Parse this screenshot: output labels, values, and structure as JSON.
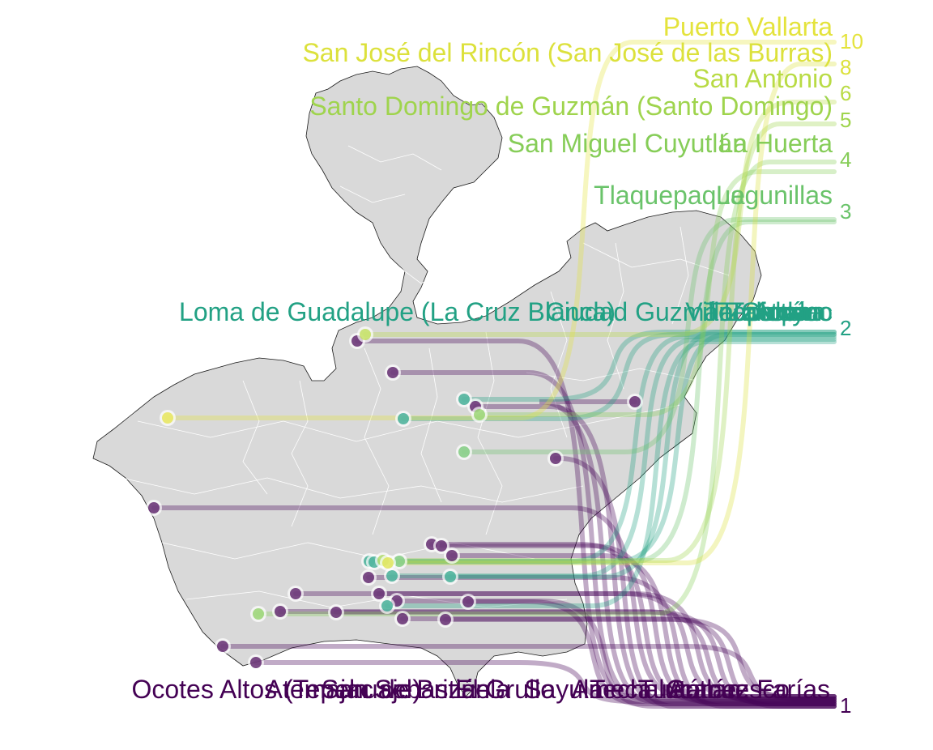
{
  "labels_right": [
    {
      "text": "Puerto Vallarta",
      "rank": "10",
      "color": "#e4e33c"
    },
    {
      "text": "San José del Rincón (San José de las Burras)",
      "rank": "8",
      "color": "#dce13c"
    },
    {
      "text": "San Antonio",
      "rank": "6",
      "color": "#b9db45"
    },
    {
      "text": "Santo Domingo de Guzmán (Santo Domingo)",
      "rank": "5",
      "color": "#9fd44d"
    },
    {
      "text": "San Miguel Cuyutlán",
      "rank": "",
      "color": "#86cd58"
    },
    {
      "text": "La Huerta",
      "rank": "4",
      "color": "#86cd58"
    },
    {
      "text": "Tlaquepaque",
      "rank": "",
      "color": "#6ac36a"
    },
    {
      "text": "Lagunillas",
      "rank": "3",
      "color": "#6ac36a"
    },
    {
      "text": "Loma de Guadalupe (La Cruz Blanca)",
      "rank": "",
      "color": "#22a184"
    },
    {
      "text": "Ciudad Guzmán",
      "rank": "",
      "color": "#22a184"
    },
    {
      "text": "Tapalpa",
      "rank": "",
      "color": "#22a184"
    },
    {
      "text": "Tecolotlán",
      "rank": "",
      "color": "#22a184"
    },
    {
      "text": "Villa Corona",
      "rank": "",
      "color": "#22a184"
    },
    {
      "text": "Zacoalco",
      "rank": "",
      "color": "#22a184"
    },
    {
      "text": "Tolimán",
      "rank": "",
      "color": "#22a184"
    },
    {
      "text": "Atoyac",
      "rank": "2",
      "color": "#22a184"
    },
    {
      "text": "Ocotes Altos (Tepehuaje)",
      "rank": "",
      "color": "#440154"
    },
    {
      "text": "San Sebastián",
      "rank": "",
      "color": "#440154"
    },
    {
      "text": "Atemajac de Brizuela",
      "rank": "",
      "color": "#440154"
    },
    {
      "text": "El Grullo",
      "rank": "",
      "color": "#440154"
    },
    {
      "text": "Sayula",
      "rank": "",
      "color": "#440154"
    },
    {
      "text": "Ameca",
      "rank": "",
      "color": "#440154"
    },
    {
      "text": "Techaluta",
      "rank": "",
      "color": "#440154"
    },
    {
      "text": "Autlán",
      "rank": "",
      "color": "#440154"
    },
    {
      "text": "Tuxcacuesco",
      "rank": "",
      "color": "#440154"
    },
    {
      "text": "Gómez Farías",
      "rank": "1",
      "color": "#440154"
    }
  ],
  "points": [
    {
      "color": "#440154",
      "label_row": 16
    },
    {
      "color": "#440154",
      "label_row": 16
    },
    {
      "color": "#440154",
      "label_row": 16
    },
    {
      "color": "#440154",
      "label_row": 16
    },
    {
      "color": "#440154",
      "label_row": 16
    },
    {
      "color": "#440154",
      "label_row": 16
    },
    {
      "color": "#440154",
      "label_row": 16
    },
    {
      "color": "#440154",
      "label_row": 16
    },
    {
      "color": "#440154",
      "label_row": 16
    },
    {
      "color": "#440154",
      "label_row": 16
    },
    {
      "color": "#440154",
      "label_row": 16
    },
    {
      "color": "#440154",
      "label_row": 16
    },
    {
      "color": "#440154",
      "label_row": 16
    },
    {
      "color": "#440154",
      "label_row": 16
    },
    {
      "color": "#440154",
      "label_row": 16
    },
    {
      "color": "#440154",
      "label_row": 16
    },
    {
      "color": "#440154",
      "label_row": 16
    },
    {
      "color": "#440154",
      "label_row": 16
    },
    {
      "color": "#440154",
      "label_row": 16
    },
    {
      "color": "#440154",
      "label_row": 16
    },
    {
      "color": "#22a184",
      "label_row": 8
    },
    {
      "color": "#22a184",
      "label_row": 8
    },
    {
      "color": "#22a184",
      "label_row": 8
    },
    {
      "color": "#22a184",
      "label_row": 8
    },
    {
      "color": "#22a184",
      "label_row": 8
    },
    {
      "color": "#22a184",
      "label_row": 8
    },
    {
      "color": "#22a184",
      "label_row": 8
    },
    {
      "color": "#6ac36a",
      "label_row": 6
    },
    {
      "color": "#6ac36a",
      "label_row": 6
    },
    {
      "color": "#86cd58",
      "label_row": 4
    },
    {
      "color": "#86cd58",
      "label_row": 4
    },
    {
      "color": "#9fd44d",
      "label_row": 3
    },
    {
      "color": "#b9db45",
      "label_row": 2
    },
    {
      "color": "#dce13c",
      "label_row": 1
    },
    {
      "color": "#e4e33c",
      "label_row": 0
    }
  ]
}
